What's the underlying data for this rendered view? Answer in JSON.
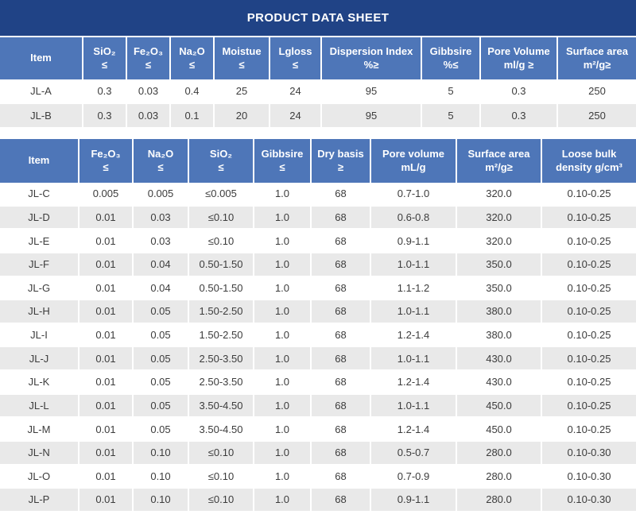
{
  "title": "PRODUCT DATA SHEET",
  "colors": {
    "title_bar_bg": "#204386",
    "header_bg": "#4E76B8",
    "header_text": "#FFFFFF",
    "alt_row_bg": "#E9E9E9",
    "body_text": "#3C3C3C"
  },
  "table1": {
    "headers": [
      {
        "line1": "Item",
        "line2": ""
      },
      {
        "line1": "SiO₂",
        "line2": "≤"
      },
      {
        "line1": "Fe₂O₃",
        "line2": "≤"
      },
      {
        "line1": "Na₂O",
        "line2": "≤"
      },
      {
        "line1": "Moistue",
        "line2": "≤"
      },
      {
        "line1": "Lgloss",
        "line2": "≤"
      },
      {
        "line1": "Dispersion Index",
        "line2": "%≥"
      },
      {
        "line1": "Gibbsire",
        "line2": "%≤"
      },
      {
        "line1": "Pore Volume",
        "line2": "ml/g ≥"
      },
      {
        "line1": "Surface area",
        "line2": "m²/g≥"
      }
    ],
    "rows": [
      {
        "item": "JL-A",
        "cells": [
          "0.3",
          "0.03",
          "0.4",
          "25",
          "24",
          "95",
          "5",
          "0.3",
          "250"
        ]
      },
      {
        "item": "JL-B",
        "cells": [
          "0.3",
          "0.03",
          "0.1",
          "20",
          "24",
          "95",
          "5",
          "0.3",
          "250"
        ]
      }
    ]
  },
  "table2": {
    "headers": [
      {
        "line1": "Item",
        "line2": ""
      },
      {
        "line1": "Fe₂O₃",
        "line2": "≤"
      },
      {
        "line1": "Na₂O",
        "line2": "≤"
      },
      {
        "line1": "SiO₂",
        "line2": "≤"
      },
      {
        "line1": "Gibbsire",
        "line2": "≤"
      },
      {
        "line1": "Dry basis",
        "line2": "≥"
      },
      {
        "line1": "Pore volume",
        "line2": "mL/g"
      },
      {
        "line1": "Surface area",
        "line2": "m²/g≥"
      },
      {
        "line1": "Loose bulk",
        "line2": "density g/cm³"
      }
    ],
    "rows": [
      {
        "item": "JL-C",
        "cells": [
          "0.005",
          "0.005",
          "≤0.005",
          "1.0",
          "68",
          "0.7-1.0",
          "320.0",
          "0.10-0.25"
        ]
      },
      {
        "item": "JL-D",
        "cells": [
          "0.01",
          "0.03",
          "≤0.10",
          "1.0",
          "68",
          "0.6-0.8",
          "320.0",
          "0.10-0.25"
        ]
      },
      {
        "item": "JL-E",
        "cells": [
          "0.01",
          "0.03",
          "≤0.10",
          "1.0",
          "68",
          "0.9-1.1",
          "320.0",
          "0.10-0.25"
        ]
      },
      {
        "item": "JL-F",
        "cells": [
          "0.01",
          "0.04",
          "0.50-1.50",
          "1.0",
          "68",
          "1.0-1.1",
          "350.0",
          "0.10-0.25"
        ]
      },
      {
        "item": "JL-G",
        "cells": [
          "0.01",
          "0.04",
          "0.50-1.50",
          "1.0",
          "68",
          "1.1-1.2",
          "350.0",
          "0.10-0.25"
        ]
      },
      {
        "item": "JL-H",
        "cells": [
          "0.01",
          "0.05",
          "1.50-2.50",
          "1.0",
          "68",
          "1.0-1.1",
          "380.0",
          "0.10-0.25"
        ]
      },
      {
        "item": "JL-I",
        "cells": [
          "0.01",
          "0.05",
          "1.50-2.50",
          "1.0",
          "68",
          "1.2-1.4",
          "380.0",
          "0.10-0.25"
        ]
      },
      {
        "item": "JL-J",
        "cells": [
          "0.01",
          "0.05",
          "2.50-3.50",
          "1.0",
          "68",
          "1.0-1.1",
          "430.0",
          "0.10-0.25"
        ]
      },
      {
        "item": "JL-K",
        "cells": [
          "0.01",
          "0.05",
          "2.50-3.50",
          "1.0",
          "68",
          "1.2-1.4",
          "430.0",
          "0.10-0.25"
        ]
      },
      {
        "item": "JL-L",
        "cells": [
          "0.01",
          "0.05",
          "3.50-4.50",
          "1.0",
          "68",
          "1.0-1.1",
          "450.0",
          "0.10-0.25"
        ]
      },
      {
        "item": "JL-M",
        "cells": [
          "0.01",
          "0.05",
          "3.50-4.50",
          "1.0",
          "68",
          "1.2-1.4",
          "450.0",
          "0.10-0.25"
        ]
      },
      {
        "item": "JL-N",
        "cells": [
          "0.01",
          "0.10",
          "≤0.10",
          "1.0",
          "68",
          "0.5-0.7",
          "280.0",
          "0.10-0.30"
        ]
      },
      {
        "item": "JL-O",
        "cells": [
          "0.01",
          "0.10",
          "≤0.10",
          "1.0",
          "68",
          "0.7-0.9",
          "280.0",
          "0.10-0.30"
        ]
      },
      {
        "item": "JL-P",
        "cells": [
          "0.01",
          "0.10",
          "≤0.10",
          "1.0",
          "68",
          "0.9-1.1",
          "280.0",
          "0.10-0.30"
        ]
      }
    ]
  }
}
